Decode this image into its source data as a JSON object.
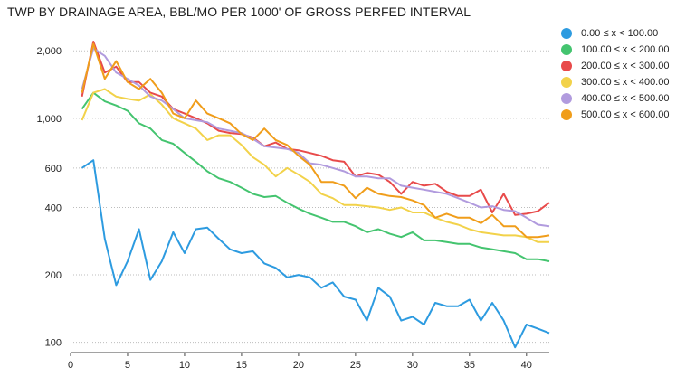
{
  "chart_data": {
    "type": "line",
    "title": "TWP BY DRAINAGE AREA, BBL/MO PER 1000' OF GROSS PERFED INTERVAL",
    "xlabel": "",
    "ylabel": "",
    "y_scale": "log",
    "xlim": [
      0,
      42
    ],
    "ylim": [
      90,
      2600
    ],
    "x_ticks": [
      0,
      5,
      10,
      15,
      20,
      25,
      30,
      35,
      40
    ],
    "y_ticks": [
      100,
      200,
      400,
      600,
      1000,
      2000
    ],
    "y_tick_labels": [
      "100",
      "200",
      "400",
      "600",
      "1,000",
      "2,000"
    ],
    "grid": true,
    "legend_position": "top-right",
    "x": [
      1,
      2,
      3,
      4,
      5,
      6,
      7,
      8,
      9,
      10,
      11,
      12,
      13,
      14,
      15,
      16,
      17,
      18,
      19,
      20,
      21,
      22,
      23,
      24,
      25,
      26,
      27,
      28,
      29,
      30,
      31,
      32,
      33,
      34,
      35,
      36,
      37,
      38,
      39,
      40,
      41,
      42
    ],
    "series": [
      {
        "name": "0.00 ≤ x < 100.00",
        "color": "#2d9be0",
        "values": [
          600,
          650,
          290,
          180,
          230,
          320,
          190,
          230,
          310,
          250,
          320,
          325,
          290,
          260,
          250,
          255,
          225,
          215,
          195,
          200,
          195,
          175,
          185,
          160,
          155,
          125,
          175,
          160,
          125,
          130,
          120,
          150,
          145,
          145,
          155,
          125,
          150,
          125,
          95,
          120,
          115,
          110
        ]
      },
      {
        "name": "100.00 ≤ x < 200.00",
        "color": "#44c46f",
        "values": [
          1100,
          1300,
          1190,
          1140,
          1080,
          950,
          900,
          800,
          770,
          700,
          640,
          580,
          540,
          520,
          490,
          460,
          445,
          450,
          420,
          395,
          375,
          360,
          345,
          345,
          330,
          310,
          320,
          305,
          295,
          310,
          285,
          285,
          280,
          275,
          275,
          265,
          260,
          255,
          250,
          235,
          235,
          230
        ]
      },
      {
        "name": "200.00 ≤ x < 300.00",
        "color": "#e84a4a",
        "values": [
          1250,
          2200,
          1600,
          1700,
          1450,
          1450,
          1300,
          1250,
          1100,
          1050,
          1000,
          950,
          880,
          860,
          850,
          820,
          750,
          780,
          730,
          720,
          700,
          680,
          650,
          640,
          550,
          570,
          560,
          520,
          460,
          520,
          500,
          510,
          470,
          450,
          450,
          480,
          380,
          460,
          370,
          375,
          385,
          420
        ]
      },
      {
        "name": "300.00 ≤ x < 400.00",
        "color": "#f2d24a",
        "values": [
          980,
          1300,
          1350,
          1250,
          1220,
          1200,
          1280,
          1150,
          1000,
          950,
          900,
          800,
          840,
          840,
          760,
          670,
          620,
          550,
          600,
          560,
          520,
          460,
          440,
          410,
          410,
          405,
          400,
          390,
          400,
          380,
          380,
          360,
          345,
          335,
          320,
          310,
          305,
          300,
          300,
          295,
          280,
          280
        ]
      },
      {
        "name": "400.00 ≤ x < 500.00",
        "color": "#b19bde",
        "values": [
          1350,
          2050,
          1900,
          1600,
          1500,
          1400,
          1250,
          1200,
          1100,
          1000,
          980,
          960,
          900,
          880,
          860,
          810,
          750,
          740,
          730,
          700,
          630,
          620,
          600,
          580,
          550,
          550,
          540,
          540,
          500,
          490,
          480,
          470,
          460,
          440,
          420,
          400,
          405,
          390,
          385,
          360,
          335,
          330
        ]
      },
      {
        "name": "500.00 ≤ x < 600.00",
        "color": "#f09d1a",
        "values": [
          1300,
          2150,
          1500,
          1800,
          1450,
          1350,
          1500,
          1300,
          1050,
          1000,
          1200,
          1050,
          1000,
          950,
          850,
          800,
          900,
          800,
          760,
          680,
          620,
          520,
          520,
          500,
          440,
          490,
          460,
          450,
          445,
          430,
          410,
          360,
          375,
          360,
          360,
          340,
          370,
          330,
          330,
          295,
          295,
          300
        ]
      }
    ]
  }
}
